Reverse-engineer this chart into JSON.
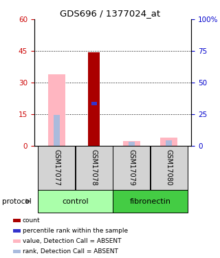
{
  "title": "GDS696 / 1377024_at",
  "samples": [
    "GSM17077",
    "GSM17078",
    "GSM17079",
    "GSM17080"
  ],
  "bar_colors": {
    "count": "#AA0000",
    "rank": "#3333CC",
    "value_absent": "#FFB6C1",
    "rank_absent": "#AABBDD"
  },
  "count_values": [
    0,
    44.5,
    0,
    0
  ],
  "rank_values": [
    0,
    20,
    0,
    0
  ],
  "value_absent": [
    34,
    0,
    2.2,
    3.8
  ],
  "rank_absent": [
    14.5,
    0,
    1.8,
    2.5
  ],
  "rank_absent_has_marker": [
    true,
    false,
    true,
    true
  ],
  "rank_has_marker": [
    false,
    true,
    false,
    false
  ],
  "ylim": [
    0,
    60
  ],
  "yticks_left": [
    0,
    15,
    30,
    45,
    60
  ],
  "yticks_right": [
    0,
    25,
    50,
    75,
    100
  ],
  "ylabel_left_color": "#CC0000",
  "ylabel_right_color": "#0000CC",
  "dotted_lines": [
    15,
    30,
    45
  ],
  "bar_width": 0.35,
  "legend_items": [
    {
      "color": "#AA0000",
      "label": "count"
    },
    {
      "color": "#3333CC",
      "label": "percentile rank within the sample"
    },
    {
      "color": "#FFB6C1",
      "label": "value, Detection Call = ABSENT"
    },
    {
      "color": "#AABBDD",
      "label": "rank, Detection Call = ABSENT"
    }
  ],
  "group_spans": [
    {
      "label": "control",
      "start": 0,
      "end": 1,
      "color": "#AAFFAA"
    },
    {
      "label": "fibronectin",
      "start": 2,
      "end": 3,
      "color": "#44CC44"
    }
  ]
}
